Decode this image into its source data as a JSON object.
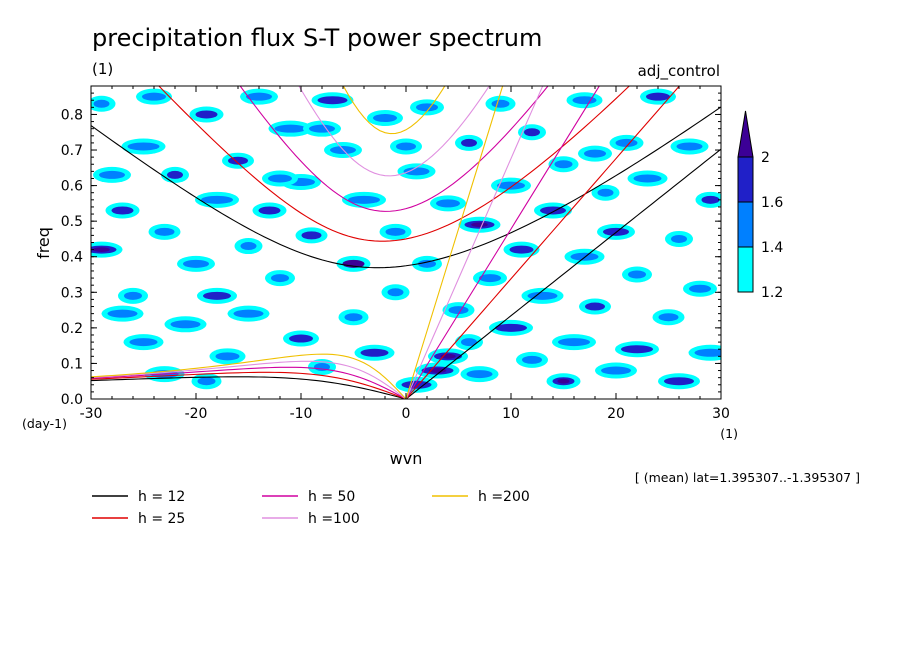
{
  "chart_data": {
    "type": "heatmap",
    "title": "precipitation flux S-T power spectrum",
    "subtitle": "(1)",
    "run_label": "adj_control",
    "xlabel": "wvn",
    "ylabel": "freq",
    "x_unit": "(1)",
    "y_unit": "(day-1)",
    "xlim": [
      -30,
      30
    ],
    "ylim": [
      0,
      0.88
    ],
    "x_ticks": [
      -30,
      -20,
      -10,
      0,
      10,
      20,
      30
    ],
    "y_ticks": [
      0.0,
      0.1,
      0.2,
      0.3,
      0.4,
      0.5,
      0.6,
      0.7,
      0.8
    ],
    "x_tick_labels": [
      "-30",
      "-20",
      "-10",
      "0",
      "10",
      "20",
      "30"
    ],
    "y_tick_labels": [
      "0.0",
      "0.1",
      "0.2",
      "0.3",
      "0.4",
      "0.5",
      "0.6",
      "0.7",
      "0.8"
    ],
    "color_levels": [
      1.2,
      1.4,
      1.6,
      2
    ],
    "color_level_labels": [
      "1.2",
      "1.4",
      "1.6",
      "2"
    ],
    "colors": [
      "#00ffff",
      "#0080ff",
      "#2020c8",
      "#3c0096"
    ],
    "note": "[ (mean) lat=1.395307..-1.395307 ]",
    "dispersion_curves": [
      {
        "label": "h = 12",
        "h": 12,
        "color": "#000000"
      },
      {
        "label": "h = 25",
        "h": 25,
        "color": "#e00000"
      },
      {
        "label": "h = 50",
        "h": 50,
        "color": "#d000a0"
      },
      {
        "label": "h =100",
        "h": 100,
        "color": "#e090e0"
      },
      {
        "label": "h =200",
        "h": 200,
        "color": "#f0c000"
      }
    ],
    "blobs": [
      [
        -29,
        0.83,
        1.4
      ],
      [
        -29,
        0.42,
        1.8
      ],
      [
        -28,
        0.63,
        1.4
      ],
      [
        -27,
        0.53,
        1.6
      ],
      [
        -26,
        0.29,
        1.4
      ],
      [
        -25,
        0.71,
        1.4
      ],
      [
        -25,
        0.16,
        1.4
      ],
      [
        -24,
        0.85,
        1.4
      ],
      [
        -23,
        0.47,
        1.4
      ],
      [
        -22,
        0.63,
        1.6
      ],
      [
        -21,
        0.21,
        1.4
      ],
      [
        -20,
        0.38,
        1.4
      ],
      [
        -19,
        0.8,
        1.6
      ],
      [
        -19,
        0.05,
        1.4
      ],
      [
        -18,
        0.56,
        1.4
      ],
      [
        -18,
        0.29,
        1.6
      ],
      [
        -17,
        0.12,
        1.4
      ],
      [
        -16,
        0.67,
        1.6
      ],
      [
        -15,
        0.43,
        1.4
      ],
      [
        -15,
        0.24,
        1.4
      ],
      [
        -14,
        0.85,
        1.4
      ],
      [
        -13,
        0.53,
        1.6
      ],
      [
        -12,
        0.34,
        1.4
      ],
      [
        -11,
        0.76,
        1.4
      ],
      [
        -10,
        0.61,
        1.4
      ],
      [
        -10,
        0.17,
        1.6
      ],
      [
        -9,
        0.46,
        1.6
      ],
      [
        -8,
        0.09,
        1.4
      ],
      [
        -7,
        0.84,
        1.6
      ],
      [
        -6,
        0.7,
        1.4
      ],
      [
        -5,
        0.38,
        2.0
      ],
      [
        -5,
        0.23,
        1.4
      ],
      [
        -4,
        0.56,
        1.4
      ],
      [
        -3,
        0.13,
        1.6
      ],
      [
        -2,
        0.79,
        1.4
      ],
      [
        -1,
        0.47,
        1.4
      ],
      [
        -1,
        0.3,
        1.4
      ],
      [
        1,
        0.04,
        1.6
      ],
      [
        1,
        0.64,
        1.4
      ],
      [
        2,
        0.82,
        1.4
      ],
      [
        2,
        0.38,
        1.4
      ],
      [
        3,
        0.08,
        1.8
      ],
      [
        4,
        0.12,
        1.8
      ],
      [
        4,
        0.55,
        1.4
      ],
      [
        5,
        0.25,
        1.4
      ],
      [
        6,
        0.72,
        1.6
      ],
      [
        7,
        0.49,
        1.8
      ],
      [
        7,
        0.07,
        1.4
      ],
      [
        8,
        0.34,
        1.4
      ],
      [
        9,
        0.83,
        1.4
      ],
      [
        10,
        0.2,
        1.6
      ],
      [
        10,
        0.6,
        1.4
      ],
      [
        11,
        0.42,
        1.6
      ],
      [
        12,
        0.11,
        1.4
      ],
      [
        12,
        0.75,
        1.6
      ],
      [
        13,
        0.29,
        1.4
      ],
      [
        14,
        0.53,
        1.6
      ],
      [
        15,
        0.05,
        1.8
      ],
      [
        15,
        0.66,
        1.4
      ],
      [
        16,
        0.16,
        1.4
      ],
      [
        17,
        0.4,
        1.4
      ],
      [
        17,
        0.84,
        1.4
      ],
      [
        18,
        0.26,
        1.6
      ],
      [
        19,
        0.58,
        1.4
      ],
      [
        20,
        0.08,
        1.4
      ],
      [
        20,
        0.47,
        1.6
      ],
      [
        21,
        0.72,
        1.4
      ],
      [
        22,
        0.35,
        1.4
      ],
      [
        22,
        0.14,
        1.6
      ],
      [
        23,
        0.62,
        1.4
      ],
      [
        24,
        0.85,
        1.6
      ],
      [
        25,
        0.23,
        1.4
      ],
      [
        26,
        0.45,
        1.4
      ],
      [
        26,
        0.05,
        1.6
      ],
      [
        27,
        0.71,
        1.4
      ],
      [
        28,
        0.31,
        1.4
      ],
      [
        29,
        0.56,
        1.6
      ],
      [
        29,
        0.13,
        1.4
      ],
      [
        -23,
        0.07,
        1.4
      ],
      [
        -12,
        0.62,
        1.4
      ],
      [
        0,
        0.71,
        1.4
      ],
      [
        6,
        0.16,
        1.4
      ],
      [
        -27,
        0.24,
        1.4
      ],
      [
        -8,
        0.76,
        1.4
      ],
      [
        18,
        0.69,
        1.4
      ]
    ]
  }
}
